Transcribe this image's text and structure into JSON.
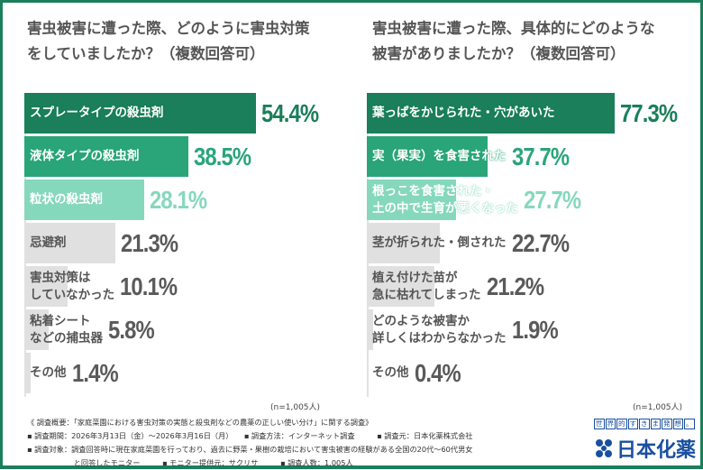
{
  "colors": {
    "dark": "#1a7f5a",
    "mid": "#2aa57a",
    "light": "#86d8bc",
    "gray": "#e0e0e0",
    "grayText": "#5a5a5a",
    "brand": "#1a4fa0"
  },
  "chart_data": [
    {
      "type": "bar",
      "orientation": "horizontal",
      "title": "害虫被害に遭った際、どのように害虫対策をしていましたか？（複数回答可）",
      "title_lines": [
        "害虫被害に遭った際、どのように害虫対策",
        "をしていましたか？（複数回答可）"
      ],
      "categories": [
        "スプレータイプの殺虫剤",
        "液体タイプの殺虫剤",
        "粒状の殺虫剤",
        "忌避剤",
        "害虫対策は\nしていなかった",
        "粘着シート\nなどの捕虫器",
        "その他"
      ],
      "values": [
        54.4,
        38.5,
        28.1,
        21.3,
        10.1,
        5.8,
        1.4
      ],
      "labels": [
        "54.4%",
        "38.5%",
        "28.1%",
        "21.3%",
        "10.1%",
        "5.8%",
        "1.4%"
      ],
      "note": "(n=1,005人)"
    },
    {
      "type": "bar",
      "orientation": "horizontal",
      "title": "害虫被害に遭った際、具体的にどのような被害がありましたか？（複数回答可）",
      "title_lines": [
        "害虫被害に遭った際、具体的にどのような",
        "被害がありましたか？（複数回答可）"
      ],
      "categories": [
        "葉っぱをかじられた・穴があいた",
        "実（果実）を食害された",
        "根っこを食害された・\n土の中で生育が悪くなった",
        "茎が折られた・倒された",
        "植え付けた苗が\n急に枯れてしまった",
        "どのような被害か\n詳しくはわからなかった",
        "その他"
      ],
      "values": [
        77.3,
        37.7,
        27.7,
        22.7,
        21.2,
        1.9,
        0.4
      ],
      "labels": [
        "77.3%",
        "37.7%",
        "27.7%",
        "22.7%",
        "21.2%",
        "1.9%",
        "0.4%"
      ],
      "note": "(n=1,005人)"
    }
  ],
  "footer": {
    "lines": [
      "《 調査概要：「家庭菜園における害虫対策の実態と殺虫剤などの農薬の正しい使い分け」に関する調査》",
      "▪ 調査期間：2026年3月13日（金）～2026年3月16日（月）　　▪ 調査方法：インターネット調査　　　▪ 調査元：日本化薬株式会社",
      "▪ 調査対象：調査回答時に現在家庭菜園を行っており、過去に野菜・果樹の栽培において害虫被害の経験がある全国の20代～60代男女",
      "　　　　　　 と回答したモニター　　　▪ モニター提供元：サクリサ　　　▪ 調査人数：1,005人"
    ]
  },
  "brand": {
    "slogan": "世界的すきま発想。",
    "name": "日本化薬"
  }
}
